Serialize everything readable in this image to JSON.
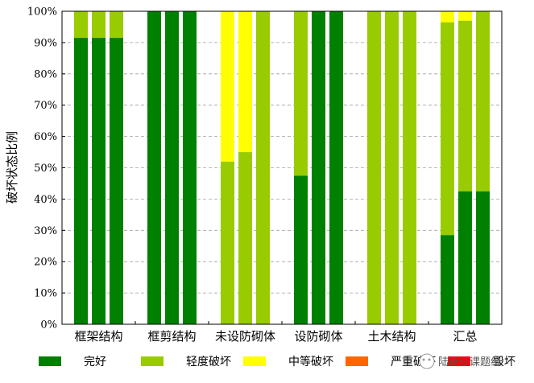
{
  "chart_data": {
    "type": "bar",
    "stacked": true,
    "ylabel": "破坏状态比例",
    "ylim": [
      0,
      100
    ],
    "yticks": [
      "0%",
      "10%",
      "20%",
      "30%",
      "40%",
      "50%",
      "60%",
      "70%",
      "80%",
      "90%",
      "100%"
    ],
    "grid": "y dashed",
    "groups": [
      "框架结构",
      "框剪结构",
      "未设防砌体",
      "设防砌体",
      "土木结构",
      "汇总"
    ],
    "bars_per_group": 3,
    "series": [
      {
        "name": "完好",
        "color": "#008000",
        "values": [
          91.5,
          91.5,
          91.5,
          100,
          100,
          100,
          0,
          0,
          0,
          47.5,
          100,
          100,
          0,
          0,
          0,
          28.5,
          42.5,
          42.5
        ]
      },
      {
        "name": "轻度破坏",
        "color": "#99cc00",
        "values": [
          8.5,
          8.5,
          8.5,
          0,
          0,
          0,
          52,
          55,
          100,
          52.5,
          0,
          0,
          100,
          100,
          100,
          68,
          54.5,
          57.5
        ]
      },
      {
        "name": "中等破坏",
        "color": "#ffff00",
        "values": [
          0,
          0,
          0,
          0,
          0,
          0,
          48,
          45,
          0,
          0,
          0,
          0,
          0,
          0,
          0,
          3.5,
          3,
          0
        ]
      },
      {
        "name": "严重破坏",
        "color": "#ff6600",
        "values": [
          0,
          0,
          0,
          0,
          0,
          0,
          0,
          0,
          0,
          0,
          0,
          0,
          0,
          0,
          0,
          0,
          0,
          0
        ]
      },
      {
        "name": "毁坏",
        "color": "#ff0000",
        "values": [
          0,
          0,
          0,
          0,
          0,
          0,
          0,
          0,
          0,
          0,
          0,
          0,
          0,
          0,
          0,
          0,
          0,
          0
        ]
      }
    ],
    "legend_position": "bottom"
  },
  "watermark": {
    "text": "陆新征课题组",
    "icon": "wechat-icon"
  }
}
